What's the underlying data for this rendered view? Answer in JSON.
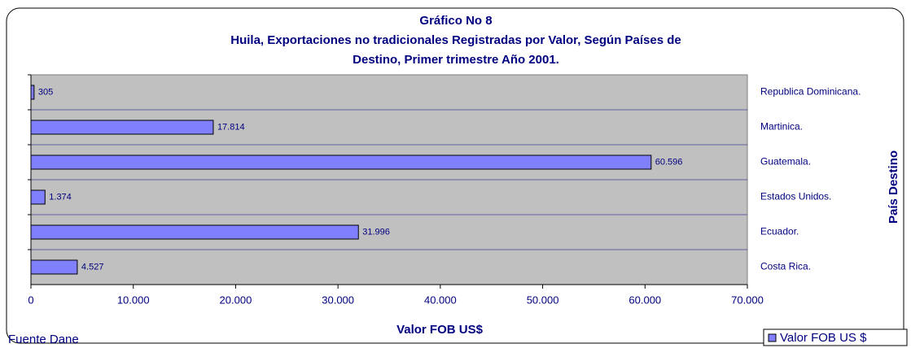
{
  "chart_data": {
    "type": "hbar",
    "title": [
      "Gráfico No 8",
      "Huila, Exportaciones no tradicionales Registradas por Valor, Según Países de",
      "Destino,  Primer trimestre Año 2001."
    ],
    "categories": [
      "Republica Dominicana.",
      "Martinica.",
      "Guatemala.",
      "Estados Unidos.",
      "Ecuador.",
      "Costa Rica."
    ],
    "series": [
      {
        "name": "Valor FOB US $",
        "color": "#8080ff",
        "values": [
          305,
          17814,
          60596,
          1374,
          31996,
          4527
        ],
        "value_labels": [
          "305",
          "17.814",
          "60.596",
          "1.374",
          "31.996",
          "4.527"
        ]
      }
    ],
    "xlim": [
      0,
      70000
    ],
    "xticks": [
      0,
      {
        "value": 10000,
        "label": "10.000"
      },
      {
        "value": 20000,
        "label": "20.000"
      },
      {
        "value": 30000,
        "label": "30.000"
      },
      {
        "value": 40000,
        "label": "40.000"
      },
      {
        "value": 50000,
        "label": "50.000"
      },
      {
        "value": 60000,
        "label": "60.000"
      },
      {
        "value": 70000,
        "label": "70.000"
      }
    ],
    "xlabel": "Valor FOB US$",
    "ylabel": "País Destino",
    "source": "Fuente Dane",
    "legend": "bottom-right"
  }
}
